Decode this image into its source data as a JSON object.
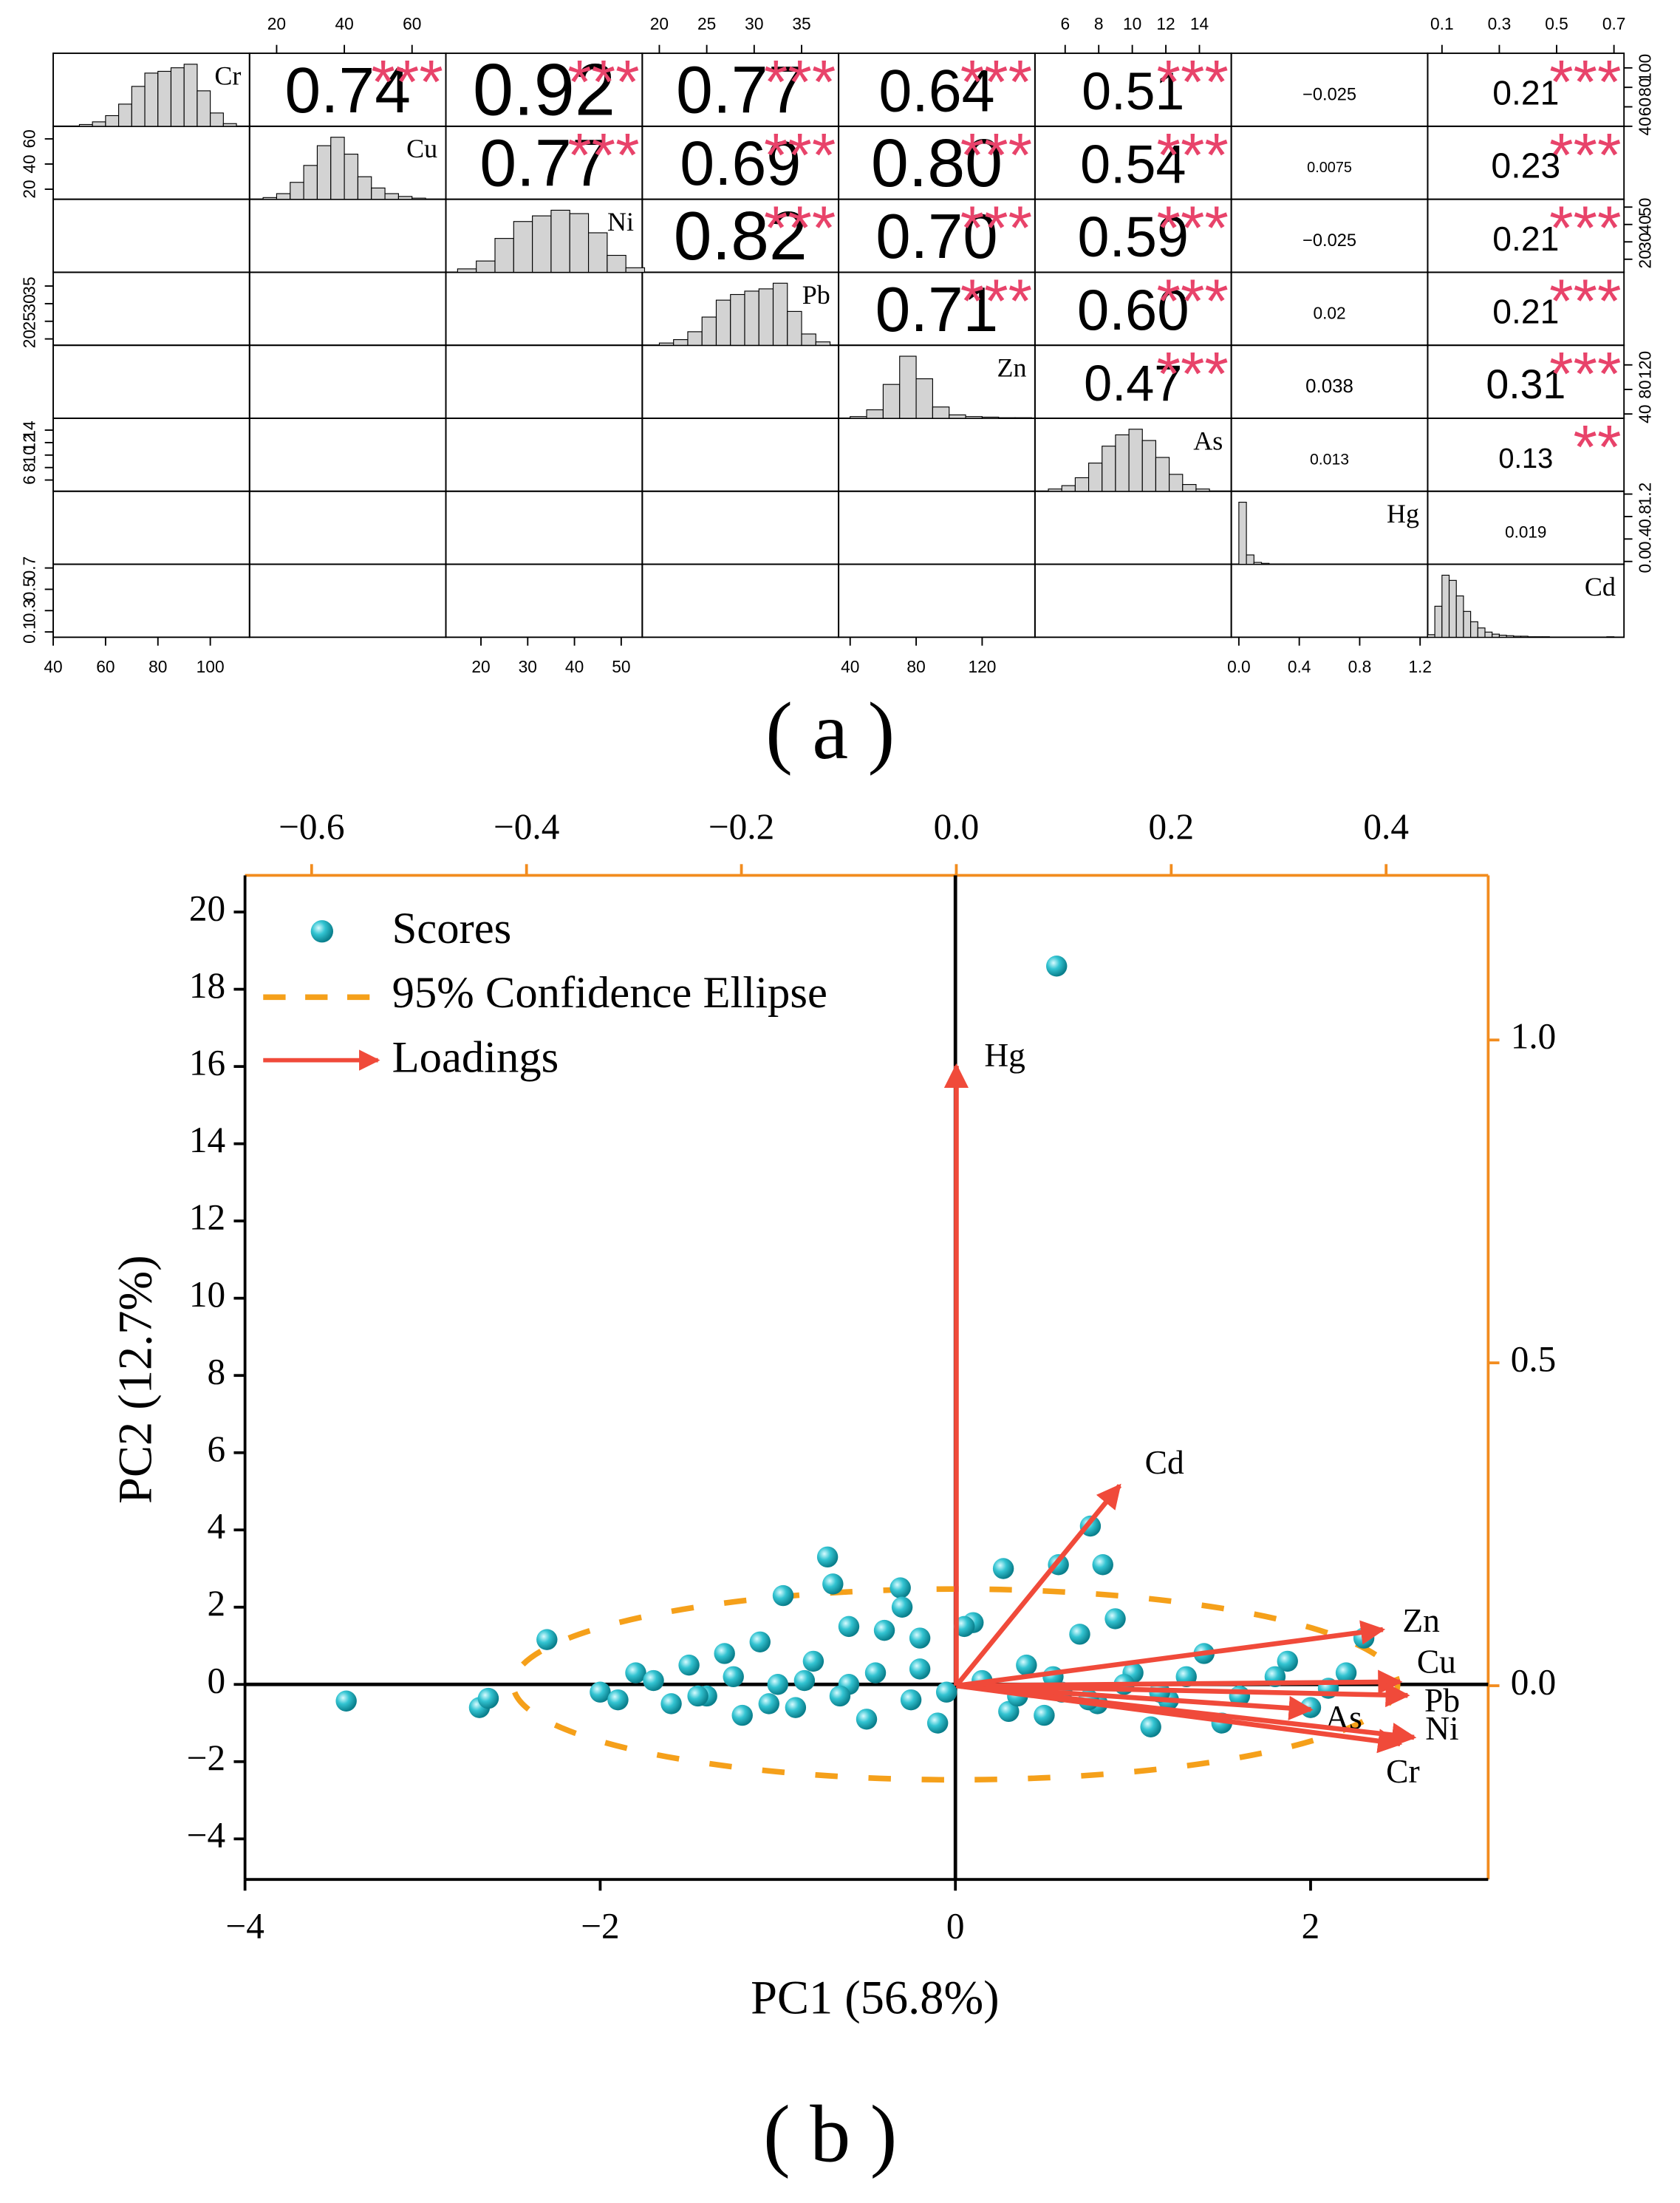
{
  "chart_data": [
    {
      "type": "pairs",
      "label": "(a)",
      "variables": [
        {
          "name": "Cr",
          "lim": [
            40,
            115
          ],
          "ticks": [
            40,
            60,
            80,
            100
          ],
          "bins": [
            50,
            55,
            60,
            65,
            70,
            75,
            80,
            85,
            90,
            95,
            100,
            105,
            110
          ],
          "counts": [
            2,
            5,
            12,
            25,
            45,
            60,
            62,
            66,
            70,
            40,
            15,
            3
          ]
        },
        {
          "name": "Cu",
          "lim": [
            12,
            70
          ],
          "ticks": [
            20,
            40,
            60
          ],
          "bins": [
            16,
            20,
            24,
            28,
            32,
            36,
            40,
            44,
            48,
            52,
            56,
            60,
            64
          ],
          "counts": [
            3,
            10,
            30,
            60,
            95,
            110,
            80,
            40,
            20,
            10,
            5,
            2
          ]
        },
        {
          "name": "Ni",
          "lim": [
            12.5,
            54.5
          ],
          "ticks": [
            20,
            30,
            40,
            50
          ],
          "bins": [
            15,
            19,
            23,
            27,
            31,
            35,
            39,
            43,
            47,
            51,
            55
          ],
          "counts": [
            3,
            10,
            30,
            45,
            50,
            55,
            52,
            35,
            15,
            4
          ]
        },
        {
          "name": "Pb",
          "lim": [
            18.2,
            38.9
          ],
          "ticks": [
            20,
            25,
            30,
            35
          ],
          "bins": [
            20,
            21.5,
            23,
            24.5,
            26,
            27.5,
            29,
            30.5,
            32,
            33.5,
            35,
            36.5,
            38
          ],
          "counts": [
            2,
            5,
            12,
            25,
            40,
            45,
            48,
            50,
            55,
            30,
            10,
            3
          ]
        },
        {
          "name": "Zn",
          "lim": [
            33,
            152
          ],
          "ticks": [
            40,
            80,
            120
          ],
          "bins": [
            40,
            50,
            60,
            70,
            80,
            90,
            100,
            110,
            120,
            130,
            140,
            150
          ],
          "counts": [
            3,
            15,
            60,
            110,
            70,
            20,
            6,
            3,
            2,
            1,
            1
          ]
        },
        {
          "name": "As",
          "lim": [
            4.2,
            15.9
          ],
          "ticks": [
            6,
            8,
            10,
            12,
            14
          ],
          "bins": [
            5,
            5.8,
            6.6,
            7.4,
            8.2,
            9,
            9.8,
            10.6,
            11.4,
            12.2,
            13,
            13.8,
            14.6
          ],
          "counts": [
            2,
            5,
            12,
            25,
            40,
            50,
            55,
            45,
            30,
            15,
            6,
            2
          ]
        },
        {
          "name": "Hg",
          "lim": [
            -0.05,
            1.25
          ],
          "ticks": [
            {
              "value": 0,
              "label": "0.0"
            },
            0.4,
            0.8,
            1.2
          ],
          "bins": [
            0,
            0.05,
            0.1,
            0.15,
            0.2,
            0.25,
            0.3,
            0.35,
            0.4,
            0.45,
            0.5,
            0.55,
            0.6,
            0.65,
            0.7,
            0.75,
            0.8,
            0.85,
            0.9,
            0.95,
            1,
            1.05,
            1.1,
            1.15,
            1.2
          ],
          "counts": [
            200,
            30,
            6,
            3,
            1,
            1,
            0,
            0,
            0,
            0,
            0,
            0,
            0,
            0,
            0,
            0,
            0,
            0,
            0,
            0,
            0,
            0,
            0,
            1
          ]
        },
        {
          "name": "Cd",
          "lim": [
            0.05,
            0.735
          ],
          "ticks": [
            0.1,
            0.3,
            0.5,
            0.7
          ],
          "bins": [
            0.05,
            0.075,
            0.1,
            0.125,
            0.15,
            0.175,
            0.2,
            0.225,
            0.25,
            0.275,
            0.3,
            0.325,
            0.35,
            0.375,
            0.4,
            0.425,
            0.45,
            0.475,
            0.5,
            0.525,
            0.55,
            0.575,
            0.6,
            0.625,
            0.65,
            0.675,
            0.7
          ],
          "counts": [
            5,
            60,
            120,
            110,
            80,
            50,
            30,
            18,
            10,
            6,
            4,
            3,
            2,
            2,
            1,
            1,
            1,
            0,
            0,
            0,
            0,
            0,
            0,
            0,
            0,
            1
          ]
        }
      ],
      "correlations": [
        [
          0.74,
          0.92,
          0.77,
          0.64,
          0.51,
          -0.025,
          0.21
        ],
        [
          0.77,
          0.69,
          0.8,
          0.54,
          0.0075,
          0.23
        ],
        [
          0.82,
          0.7,
          0.59,
          -0.025,
          0.21
        ],
        [
          0.71,
          0.6,
          0.02,
          0.21
        ],
        [
          0.47,
          0.038,
          0.31
        ],
        [
          0.013,
          0.13
        ],
        [
          0.019
        ]
      ],
      "value_labels": [
        [
          "0.74",
          "0.92",
          "0.77",
          "0.64",
          "0.51",
          "−0.025",
          "0.21"
        ],
        [
          "0.77",
          "0.69",
          "0.80",
          "0.54",
          "0.0075",
          "0.23"
        ],
        [
          "0.82",
          "0.70",
          "0.59",
          "−0.025",
          "0.21"
        ],
        [
          "0.71",
          "0.60",
          "0.02",
          "0.21"
        ],
        [
          "0.47",
          "0.038",
          "0.31"
        ],
        [
          "0.013",
          "0.13"
        ],
        [
          "0.019"
        ]
      ],
      "significance": [
        [
          "***",
          "***",
          "***",
          "***",
          "***",
          null,
          "***"
        ],
        [
          "***",
          "***",
          "***",
          "***",
          null,
          "***"
        ],
        [
          "***",
          "***",
          "***",
          null,
          "***"
        ],
        [
          "***",
          "***",
          null,
          "***"
        ],
        [
          "***",
          null,
          "***"
        ],
        [
          null,
          "**"
        ],
        [
          null
        ]
      ],
      "color": "#e8436a"
    },
    {
      "type": "biplot",
      "label": "(b)",
      "xlabel": "PC1 (56.8%)",
      "ylabel": "PC2 (12.7%)",
      "xlim": [
        -4,
        3
      ],
      "ylim": [
        -5.05,
        20.95
      ],
      "xticks": [
        {
          "value": -4,
          "label": "−4"
        },
        {
          "value": -2,
          "label": "−2"
        },
        0,
        2
      ],
      "yticks": [
        {
          "value": -4,
          "label": "−4"
        },
        {
          "value": -2,
          "label": "−2"
        },
        0,
        2,
        4,
        6,
        8,
        10,
        12,
        14,
        16,
        18,
        20
      ],
      "x2lim": [
        -0.662,
        0.495
      ],
      "y2lim": [
        -0.3,
        1.255
      ],
      "x2ticks": [
        {
          "value": -0.6,
          "label": "−0.6"
        },
        {
          "value": -0.4,
          "label": "−0.4"
        },
        {
          "value": -0.2,
          "label": "−0.2"
        },
        {
          "value": 0,
          "label": "0.0"
        },
        0.2,
        0.4
      ],
      "y2ticks": [
        {
          "value": 0,
          "label": "0.0"
        },
        0.5,
        {
          "value": 1,
          "label": "1.0"
        }
      ],
      "series": [
        {
          "name": "Scores",
          "color": "#1fb5c4",
          "x": [
            0.57,
            -0.72,
            -0.97,
            -0.69,
            -0.31,
            0.27,
            0.58,
            0.76,
            0.83,
            -2.3,
            -3.43,
            -2.68,
            -2.63,
            1.87,
            2.3,
            -0.6,
            -0.4,
            -0.3,
            -0.2,
            0.1,
            0.05,
            0.9,
            0.7,
            -1.1,
            -1.3,
            -1.5,
            -1.8,
            -2.0,
            -1.6,
            -1.2,
            -0.9,
            -0.5,
            -0.1,
            0.3,
            0.5,
            0.8,
            1.0,
            1.2,
            1.4,
            1.6,
            1.8,
            2.0,
            2.2,
            1.5,
            -0.8,
            -1.4,
            -0.2,
            0.4,
            1.1,
            -1.0,
            1.3,
            0.6,
            -0.6,
            2.1,
            -1.9,
            -1.7,
            -1.45,
            -1.25,
            -1.05,
            -0.85,
            -0.65,
            -0.45,
            -0.25,
            -0.05,
            0.15,
            0.35,
            0.55,
            0.75,
            0.95,
            1.15
          ],
          "y": [
            18.6,
            3.3,
            2.3,
            2.6,
            2.5,
            3.0,
            3.1,
            4.1,
            3.1,
            1.16,
            -0.43,
            -0.6,
            -0.36,
            0.6,
            1.2,
            1.5,
            1.4,
            2.0,
            1.2,
            1.6,
            1.5,
            1.7,
            1.3,
            1.1,
            0.8,
            0.5,
            0.3,
            -0.2,
            -0.5,
            -0.8,
            -0.6,
            -0.9,
            -1.0,
            -0.7,
            -0.8,
            -0.5,
            0.3,
            -0.4,
            0.8,
            -0.3,
            0.2,
            -0.6,
            0.3,
            -1.0,
            0.6,
            -0.3,
            0.4,
            0.5,
            -1.1,
            0.0,
            0.2,
            -0.2,
            0.0,
            -0.1,
            -0.4,
            0.1,
            -0.3,
            0.2,
            -0.5,
            0.1,
            -0.3,
            0.3,
            -0.4,
            -0.2,
            0.1,
            -0.3,
            0.2,
            -0.4,
            0.0,
            -0.2
          ]
        },
        {
          "name": "95% Confidence Ellipse",
          "color": "#f5a01a",
          "ellipse": {
            "cx": 0,
            "cy": 0,
            "rx": 2.49,
            "ry": 2.47
          }
        },
        {
          "name": "Loadings",
          "color": "#f04a3a",
          "axis": "y2",
          "labels": [
            "Hg",
            "Cd",
            "Zn",
            "Cu",
            "Pb",
            "As",
            "Ni",
            "Cr"
          ],
          "x": [
            0.0,
            0.152,
            0.397,
            0.413,
            0.42,
            0.33,
            0.426,
            0.413
          ],
          "y": [
            0.96,
            0.31,
            0.087,
            0.006,
            -0.015,
            -0.037,
            -0.08,
            -0.09
          ]
        }
      ]
    }
  ]
}
